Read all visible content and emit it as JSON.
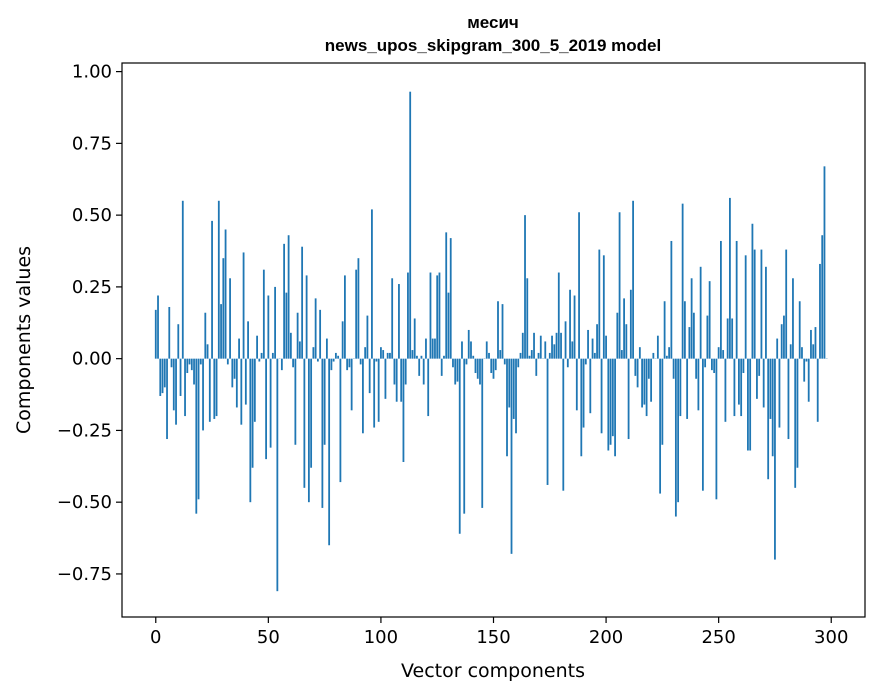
{
  "chart_data": {
    "type": "bar",
    "title": "месич",
    "subtitle": "news_upos_skipgram_300_5_2019 model",
    "xlabel": "Vector components",
    "ylabel": "Components values",
    "xlim": [
      -15,
      315
    ],
    "ylim": [
      -0.9,
      1.03
    ],
    "xticks": [
      0,
      50,
      100,
      150,
      200,
      250,
      300
    ],
    "xtick_labels": [
      "0",
      "50",
      "100",
      "150",
      "200",
      "250",
      "300"
    ],
    "yticks": [
      -0.75,
      -0.5,
      -0.25,
      0.0,
      0.25,
      0.5,
      0.75,
      1.0
    ],
    "ytick_labels": [
      "−0.75",
      "−0.50",
      "−0.25",
      "0.00",
      "0.25",
      "0.50",
      "0.75",
      "1.00"
    ],
    "color": "#1f77b4",
    "grid": false,
    "x": "0..299",
    "values": [
      0.17,
      0.22,
      -0.13,
      -0.12,
      -0.1,
      -0.28,
      0.18,
      -0.03,
      -0.18,
      -0.23,
      0.12,
      -0.13,
      0.55,
      -0.2,
      -0.05,
      -0.02,
      -0.04,
      -0.09,
      -0.54,
      -0.49,
      -0.02,
      -0.25,
      0.16,
      0.05,
      -0.22,
      0.48,
      -0.21,
      -0.2,
      0.55,
      0.19,
      0.35,
      0.45,
      -0.02,
      0.28,
      -0.1,
      -0.07,
      -0.17,
      0.07,
      -0.23,
      0.37,
      -0.16,
      0.13,
      -0.5,
      -0.38,
      -0.22,
      0.08,
      -0.01,
      0.02,
      0.31,
      -0.35,
      0.22,
      -0.31,
      0.02,
      0.25,
      -0.81,
      0.0,
      -0.04,
      0.4,
      0.23,
      0.43,
      0.09,
      -0.03,
      -0.3,
      0.16,
      0.06,
      0.39,
      -0.45,
      0.29,
      -0.5,
      -0.38,
      0.04,
      0.21,
      -0.01,
      0.17,
      -0.52,
      -0.3,
      0.07,
      -0.65,
      -0.04,
      -0.01,
      0.02,
      0.01,
      -0.43,
      0.13,
      0.29,
      -0.04,
      -0.03,
      -0.18,
      0.0,
      0.31,
      0.35,
      -0.02,
      -0.26,
      0.04,
      0.15,
      -0.12,
      0.52,
      -0.24,
      -0.01,
      -0.22,
      0.04,
      0.03,
      -0.14,
      0.02,
      0.02,
      0.28,
      -0.09,
      -0.15,
      0.26,
      -0.15,
      -0.36,
      -0.09,
      0.3,
      0.93,
      0.03,
      0.14,
      0.01,
      -0.06,
      0.01,
      -0.09,
      0.07,
      -0.2,
      0.3,
      0.07,
      0.07,
      0.29,
      0.3,
      -0.06,
      0.01,
      0.44,
      0.23,
      0.42,
      -0.03,
      -0.09,
      -0.08,
      -0.61,
      0.06,
      -0.54,
      -0.02,
      0.1,
      0.06,
      0.01,
      -0.05,
      -0.07,
      -0.09,
      -0.52,
      0.0,
      0.06,
      0.02,
      -0.05,
      -0.07,
      -0.04,
      0.2,
      0.03,
      0.19,
      -0.02,
      -0.34,
      -0.17,
      -0.68,
      -0.21,
      -0.26,
      -0.03,
      0.02,
      0.09,
      0.5,
      0.28,
      0.01,
      0.03,
      0.09,
      -0.06,
      0.02,
      0.08,
      0.0,
      0.06,
      -0.44,
      0.02,
      0.08,
      0.05,
      0.09,
      0.3,
      0.09,
      -0.46,
      0.13,
      -0.03,
      0.24,
      0.06,
      0.22,
      -0.18,
      0.51,
      -0.34,
      -0.24,
      -0.02,
      0.1,
      -0.19,
      0.07,
      0.02,
      0.12,
      0.38,
      -0.26,
      0.36,
      0.08,
      -0.32,
      -0.3,
      -0.27,
      -0.34,
      0.16,
      0.51,
      0.03,
      0.21,
      0.12,
      -0.28,
      0.24,
      0.55,
      -0.06,
      -0.1,
      0.04,
      -0.17,
      -0.16,
      -0.2,
      -0.07,
      -0.15,
      0.02,
      0.0,
      0.08,
      -0.47,
      -0.3,
      0.2,
      0.01,
      0.04,
      0.41,
      -0.07,
      -0.55,
      -0.5,
      -0.2,
      0.54,
      0.2,
      -0.21,
      0.11,
      0.28,
      0.16,
      -0.07,
      -0.18,
      0.32,
      -0.46,
      -0.03,
      0.15,
      0.27,
      -0.04,
      -0.05,
      -0.49,
      0.04,
      0.41,
      0.03,
      -0.22,
      0.14,
      0.56,
      0.14,
      -0.2,
      0.41,
      -0.16,
      -0.2,
      -0.05,
      0.36,
      -0.32,
      -0.32,
      0.47,
      0.38,
      -0.14,
      -0.06,
      0.38,
      -0.17,
      0.32,
      -0.42,
      -0.21,
      -0.34,
      -0.7,
      0.07,
      -0.24,
      0.12,
      0.15,
      0.38,
      -0.28,
      0.05,
      0.28,
      -0.45,
      -0.38,
      0.2,
      0.04,
      -0.08,
      -0.01,
      -0.15,
      0.1,
      0.05,
      0.11,
      -0.22,
      0.33,
      0.43,
      0.67,
      0.0
    ]
  }
}
